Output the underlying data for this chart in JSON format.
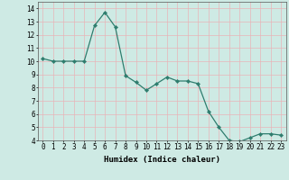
{
  "x": [
    0,
    1,
    2,
    3,
    4,
    5,
    6,
    7,
    8,
    9,
    10,
    11,
    12,
    13,
    14,
    15,
    16,
    17,
    18,
    19,
    20,
    21,
    22,
    23
  ],
  "y": [
    10.2,
    10.0,
    10.0,
    10.0,
    10.0,
    12.7,
    13.7,
    12.6,
    8.9,
    8.4,
    7.8,
    8.3,
    8.8,
    8.5,
    8.5,
    8.3,
    6.2,
    5.0,
    4.0,
    3.9,
    4.2,
    4.5,
    4.5,
    4.4
  ],
  "xlabel": "Humidex (Indice chaleur)",
  "ylim": [
    4,
    14
  ],
  "xlim": [
    -0.5,
    23.5
  ],
  "yticks": [
    4,
    5,
    6,
    7,
    8,
    9,
    10,
    11,
    12,
    13,
    14
  ],
  "xticks": [
    0,
    1,
    2,
    3,
    4,
    5,
    6,
    7,
    8,
    9,
    10,
    11,
    12,
    13,
    14,
    15,
    16,
    17,
    18,
    19,
    20,
    21,
    22,
    23
  ],
  "line_color": "#2e7d6e",
  "marker": "D",
  "marker_size": 2.2,
  "bg_color": "#ceeae4",
  "grid_color_major": "#e8b4b8",
  "grid_color_minor": "#e8b4b8",
  "xlabel_fontsize": 6.5,
  "tick_fontsize": 5.5
}
